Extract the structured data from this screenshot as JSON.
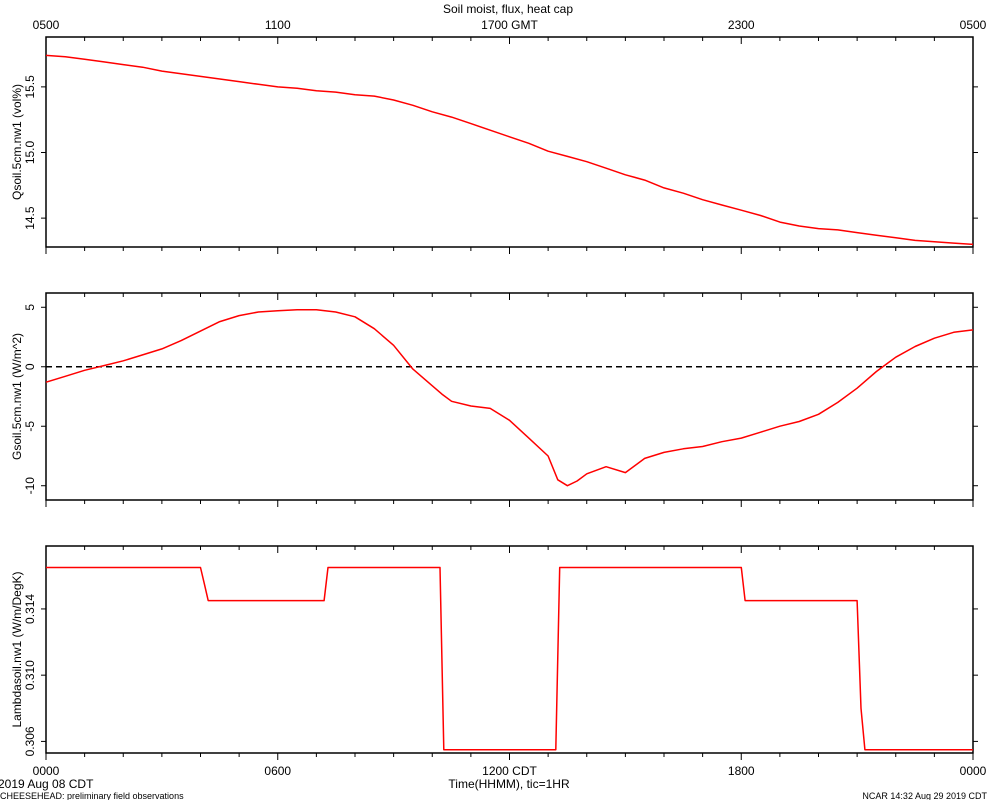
{
  "title": "Soil moist, flux, heat cap",
  "top_axis": {
    "ticks": [
      "0500",
      "1100",
      "1700 GMT",
      "2300",
      "0500"
    ]
  },
  "bottom_axis": {
    "ticks": [
      "0000",
      "0600",
      "1200 CDT",
      "1800",
      "0000"
    ],
    "xlabel": "Time(HHMM), tic=1HR",
    "date_label": "2019 Aug 08 CDT"
  },
  "footer": {
    "left": "CHEESEHEAD: preliminary field observations",
    "right": "NCAR 14:32 Aug 29 2019 CDT"
  },
  "colors": {
    "series": "#ff0000",
    "axes": "#000000",
    "zero_line": "#000000",
    "background": "#ffffff"
  },
  "chart_data": [
    {
      "type": "line",
      "ylabel": "Qsoil.5cm.nw1 (vol%)",
      "ylim": [
        14.28,
        15.88
      ],
      "yticks": [
        "15.5",
        "15.0",
        "14.5"
      ],
      "xlim": [
        0,
        24
      ],
      "x_units": "hours since 0000 CDT",
      "grid": false,
      "series": [
        {
          "x": [
            0,
            0.5,
            1,
            1.5,
            2,
            2.5,
            3,
            3.5,
            4,
            4.5,
            5,
            5.5,
            6,
            6.5,
            7,
            7.5,
            8,
            8.5,
            9,
            9.5,
            10,
            10.5,
            11,
            11.5,
            12,
            12.5,
            13,
            13.5,
            14,
            14.5,
            15,
            15.5,
            16,
            16.5,
            17,
            17.5,
            18,
            18.5,
            19,
            19.5,
            20,
            20.5,
            21,
            21.5,
            22,
            22.5,
            23,
            23.5,
            24
          ],
          "y": [
            15.74,
            15.73,
            15.71,
            15.69,
            15.67,
            15.65,
            15.62,
            15.6,
            15.58,
            15.56,
            15.54,
            15.52,
            15.5,
            15.49,
            15.47,
            15.46,
            15.44,
            15.43,
            15.4,
            15.36,
            15.31,
            15.27,
            15.22,
            15.17,
            15.12,
            15.07,
            15.01,
            14.97,
            14.93,
            14.88,
            14.83,
            14.79,
            14.73,
            14.69,
            14.64,
            14.6,
            14.56,
            14.52,
            14.47,
            14.44,
            14.42,
            14.41,
            14.39,
            14.37,
            14.35,
            14.33,
            14.32,
            14.31,
            14.3
          ]
        }
      ]
    },
    {
      "type": "line",
      "ylabel": "Gsoil.5cm.nw1 (W/m^2)",
      "ylim": [
        -11.2,
        6.2
      ],
      "yticks": [
        "5",
        "0",
        "-5",
        "-10"
      ],
      "reference_line": {
        "y": 0,
        "style": "dashed"
      },
      "xlim": [
        0,
        24
      ],
      "x_units": "hours since 0000 CDT",
      "grid": false,
      "series": [
        {
          "x": [
            0,
            0.5,
            1,
            1.5,
            2,
            2.5,
            3,
            3.5,
            4,
            4.5,
            5,
            5.5,
            6,
            6.5,
            7,
            7.5,
            8,
            8.5,
            9,
            9.5,
            10,
            10.25,
            10.5,
            11,
            11.5,
            12,
            12.5,
            13,
            13.25,
            13.5,
            13.75,
            14,
            14.5,
            15,
            15.5,
            16,
            16.5,
            17,
            17.5,
            18,
            18.5,
            19,
            19.5,
            20,
            20.5,
            21,
            21.5,
            22,
            22.5,
            23,
            23.5,
            24
          ],
          "y": [
            -1.3,
            -0.8,
            -0.3,
            0.1,
            0.5,
            1.0,
            1.5,
            2.2,
            3.0,
            3.8,
            4.3,
            4.6,
            4.7,
            4.8,
            4.8,
            4.6,
            4.2,
            3.2,
            1.8,
            -0.2,
            -1.6,
            -2.3,
            -2.9,
            -3.3,
            -3.5,
            -4.5,
            -6.0,
            -7.5,
            -9.5,
            -10.0,
            -9.6,
            -9.0,
            -8.4,
            -8.9,
            -7.7,
            -7.2,
            -6.9,
            -6.7,
            -6.3,
            -6.0,
            -5.5,
            -5.0,
            -4.6,
            -4.0,
            -3.0,
            -1.8,
            -0.4,
            0.8,
            1.7,
            2.4,
            2.9,
            3.1
          ]
        }
      ]
    },
    {
      "type": "line",
      "ylabel": "Lambdasoil.nw1 (W/m/DegK)",
      "ylim": [
        0.3053,
        0.3178
      ],
      "yticks": [
        "0.314",
        "0.310",
        "0.306"
      ],
      "xlim": [
        0,
        24
      ],
      "x_units": "hours since 0000 CDT",
      "grid": false,
      "series": [
        {
          "x": [
            0,
            4,
            4.1,
            4.2,
            7.2,
            7.3,
            10.2,
            10.3,
            13.2,
            13.3,
            18.0,
            18.1,
            21.0,
            21.1,
            21.2,
            24
          ],
          "y": [
            0.3165,
            0.3165,
            0.3155,
            0.3145,
            0.3145,
            0.3165,
            0.3165,
            0.3055,
            0.3055,
            0.3165,
            0.3165,
            0.3145,
            0.3145,
            0.308,
            0.3055,
            0.3055
          ]
        }
      ]
    }
  ]
}
